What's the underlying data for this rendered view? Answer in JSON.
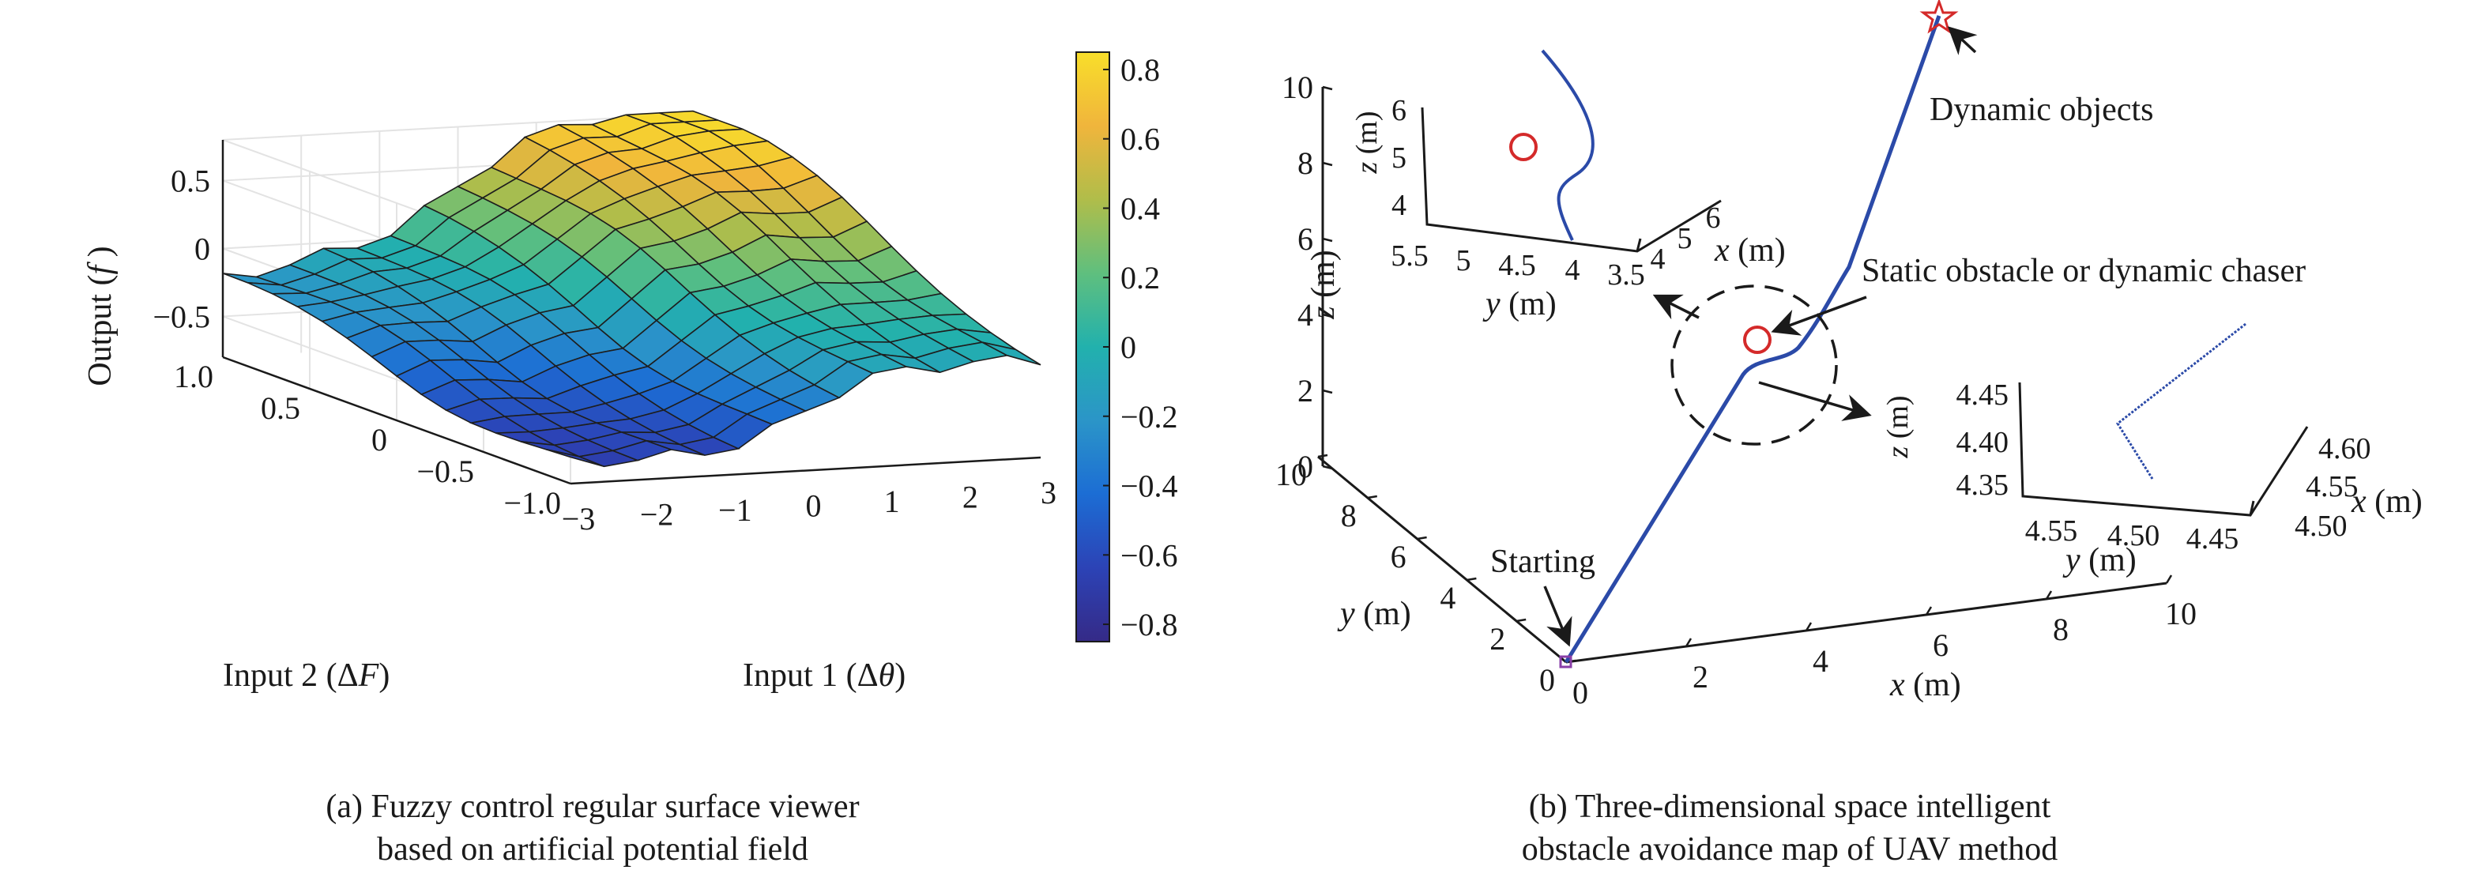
{
  "chart_data": [
    {
      "type": "surface",
      "panel": "a",
      "caption": [
        "(a) Fuzzy control regular surface viewer",
        "based on artificial potential field"
      ],
      "xlabel": "Input 1 (Δθ)",
      "ylabel": "Input 2 (ΔF)",
      "zlabel": "Output (f)",
      "xlim": [
        -3,
        3
      ],
      "ylim": [
        -1,
        1
      ],
      "zlim": [
        -0.8,
        0.8
      ],
      "xticks": [
        "−3",
        "−2",
        "−1",
        "0",
        "1",
        "2",
        "3"
      ],
      "yticks": [
        "−1.0",
        "−0.5",
        "0",
        "0.5",
        "1.0"
      ],
      "zticks": [
        "−0.5",
        "0",
        "0.5"
      ],
      "grid": {
        "nx": 15,
        "ny": 15
      },
      "colorbar": {
        "ticks": [
          "0.8",
          "0.6",
          "0.4",
          "0.2",
          "0",
          "−0.2",
          "−0.4",
          "−0.6",
          "−0.8"
        ],
        "range": [
          -0.85,
          0.85
        ]
      },
      "colormap": [
        "#352a87",
        "#2c43b6",
        "#1c6dd4",
        "#2b95c8",
        "#22b1ad",
        "#5fbf7e",
        "#b0bd4a",
        "#f0b53c",
        "#f8de2a"
      ]
    },
    {
      "type": "line3d",
      "panel": "b",
      "caption": [
        "(b) Three-dimensional space intelligent",
        "obstacle avoidance map of UAV method"
      ],
      "xlabel": "x (m)",
      "ylabel": "y (m)",
      "zlabel": "z (m)",
      "xlim": [
        0,
        10
      ],
      "ylim": [
        0,
        10
      ],
      "zlim": [
        0,
        10
      ],
      "xticks": [
        "0",
        "2",
        "4",
        "6",
        "8",
        "10"
      ],
      "yticks": [
        "0",
        "2",
        "4",
        "6",
        "8",
        "10"
      ],
      "zticks": [
        "0",
        "2",
        "4",
        "6",
        "8",
        "10"
      ],
      "annotations": {
        "start": "Starting",
        "target": "Dynamic objects",
        "obstacle": "Static obstacle or dynamic chaser"
      },
      "line_color": "#2b4aa8",
      "obstacle_color": "#d42a2a",
      "inset_upper": {
        "xlabel": "x (m)",
        "ylabel": "y (m)",
        "zlabel": "z (m)",
        "xticks": [
          "4",
          "5",
          "6"
        ],
        "yticks": [
          "5.5",
          "5",
          "4.5",
          "4",
          "3.5"
        ],
        "zticks": [
          "6",
          "5",
          "4"
        ]
      },
      "inset_lower": {
        "xlabel": "x (m)",
        "ylabel": "y (m)",
        "zlabel": "z (m)",
        "xticks": [
          "4.60",
          "4.55",
          "4.50"
        ],
        "yticks": [
          "4.55",
          "4.50",
          "4.45"
        ],
        "zticks": [
          "4.45",
          "4.40",
          "4.35"
        ]
      }
    }
  ]
}
